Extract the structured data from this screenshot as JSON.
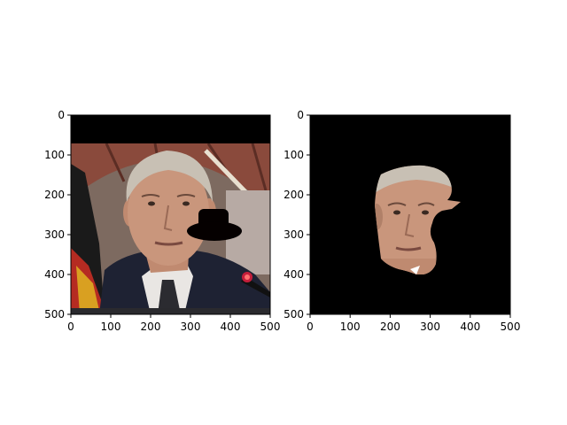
{
  "chart_data": [
    {
      "type": "image",
      "title": "",
      "xlabel": "",
      "ylabel": "",
      "xlim": [
        0,
        500
      ],
      "ylim": [
        500,
        0
      ],
      "x_ticks": [
        0,
        100,
        200,
        300,
        400,
        500
      ],
      "y_ticks": [
        0,
        100,
        200,
        300,
        400,
        500
      ],
      "image": "Photo of an older man in a suit and tie with a microphone; a black hat shape is pasted to the right of his face; black band across the top",
      "colors": {
        "frame": "#000000",
        "skin": "#c9967c",
        "hair": "#c8c0b4",
        "suit": "#1e2233",
        "backdrop": "#8a4a3c",
        "hat": "#000000"
      }
    },
    {
      "type": "image",
      "title": "",
      "xlabel": "",
      "ylabel": "",
      "xlim": [
        0,
        500
      ],
      "ylim": [
        500,
        0
      ],
      "x_ticks": [
        0,
        100,
        200,
        300,
        400,
        500
      ],
      "y_ticks": [
        0,
        100,
        200,
        300,
        400,
        500
      ],
      "image": "Segmentation mask showing only the face region on a black background; region covered by the hat is removed",
      "colors": {
        "background": "#000000",
        "skin": "#c9967c"
      }
    }
  ]
}
